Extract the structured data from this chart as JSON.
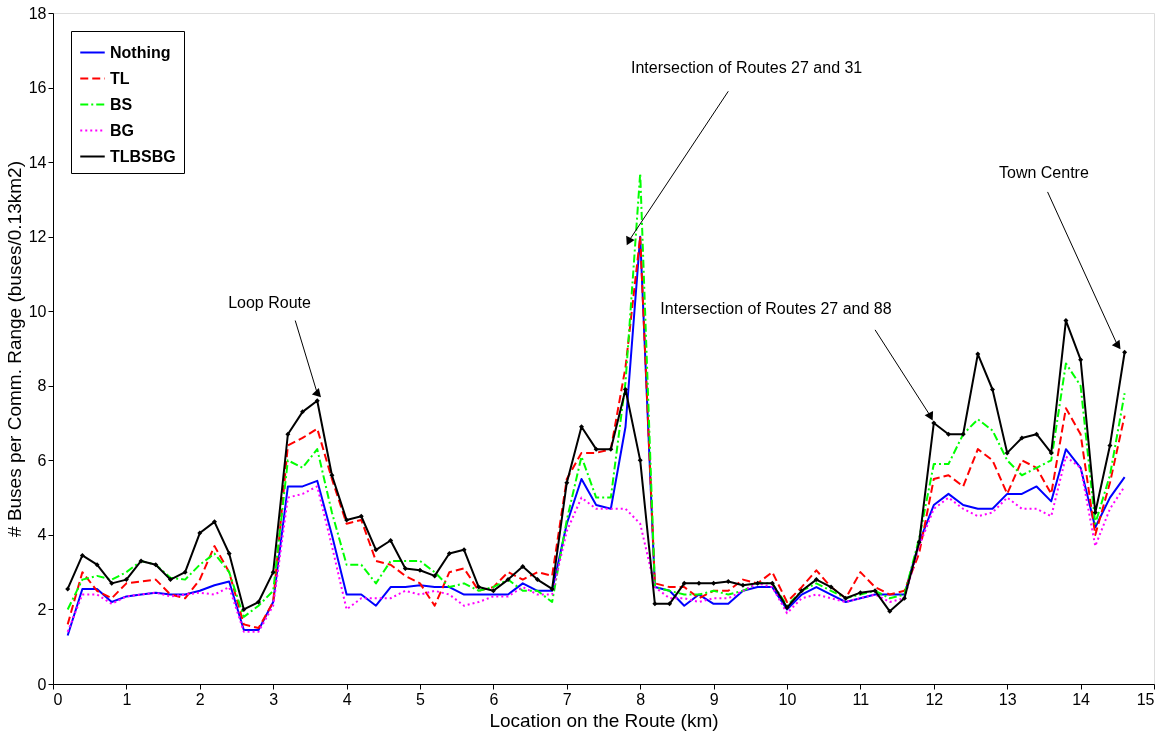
{
  "chart_data": {
    "type": "line",
    "xlabel": "Location on the Route (km)",
    "ylabel": "# Buses per Comm. Range (buses/0.13km2)",
    "x": [
      0.2,
      0.4,
      0.6,
      0.8,
      1.0,
      1.2,
      1.4,
      1.6,
      1.8,
      2.0,
      2.2,
      2.4,
      2.6,
      2.8,
      3.0,
      3.2,
      3.4,
      3.6,
      3.8,
      4.0,
      4.2,
      4.4,
      4.6,
      4.8,
      5.0,
      5.2,
      5.4,
      5.6,
      5.8,
      6.0,
      6.2,
      6.4,
      6.6,
      6.8,
      7.0,
      7.2,
      7.4,
      7.6,
      7.8,
      8.0,
      8.2,
      8.4,
      8.6,
      8.8,
      9.0,
      9.2,
      9.4,
      9.6,
      9.8,
      10.0,
      10.2,
      10.4,
      10.6,
      10.8,
      11.0,
      11.2,
      11.4,
      11.6,
      11.8,
      12.0,
      12.2,
      12.4,
      12.6,
      12.8,
      13.0,
      13.2,
      13.4,
      13.6,
      13.8,
      14.0,
      14.2,
      14.4,
      14.6
    ],
    "series": [
      {
        "name": "Nothing",
        "color": "#0000ff",
        "line_style": "solid",
        "values": [
          1.3,
          2.55,
          2.55,
          2.2,
          2.35,
          2.4,
          2.45,
          2.4,
          2.4,
          2.5,
          2.65,
          2.75,
          1.45,
          1.45,
          2.2,
          5.3,
          5.3,
          5.45,
          4.0,
          2.4,
          2.4,
          2.1,
          2.6,
          2.6,
          2.65,
          2.6,
          2.6,
          2.4,
          2.4,
          2.4,
          2.4,
          2.7,
          2.5,
          2.5,
          4.3,
          5.5,
          4.8,
          4.7,
          6.9,
          12.0,
          2.6,
          2.5,
          2.1,
          2.4,
          2.15,
          2.15,
          2.5,
          2.6,
          2.6,
          2.0,
          2.4,
          2.6,
          2.4,
          2.2,
          2.3,
          2.4,
          2.4,
          2.4,
          3.8,
          4.8,
          5.1,
          4.8,
          4.7,
          4.7,
          5.1,
          5.1,
          5.3,
          4.9,
          6.3,
          5.8,
          4.2,
          5.0,
          5.55
        ]
      },
      {
        "name": "TL",
        "color": "#ff0000",
        "line_style": "dashed",
        "values": [
          1.6,
          3.0,
          2.5,
          2.3,
          2.7,
          2.75,
          2.8,
          2.4,
          2.3,
          2.8,
          3.7,
          3.0,
          1.6,
          1.5,
          2.2,
          6.4,
          6.6,
          6.85,
          5.5,
          4.3,
          4.4,
          3.3,
          3.2,
          2.9,
          2.7,
          2.1,
          3.0,
          3.1,
          2.5,
          2.6,
          3.0,
          2.8,
          3.0,
          2.9,
          5.5,
          6.2,
          6.2,
          6.3,
          8.5,
          12.0,
          2.7,
          2.6,
          2.6,
          2.3,
          2.5,
          2.5,
          2.8,
          2.7,
          3.0,
          2.2,
          2.6,
          3.05,
          2.6,
          2.3,
          3.0,
          2.6,
          2.4,
          2.5,
          3.5,
          5.5,
          5.6,
          5.3,
          6.3,
          6.0,
          5.1,
          6.0,
          5.8,
          5.1,
          7.4,
          6.7,
          4.0,
          5.4,
          7.2
        ]
      },
      {
        "name": "BS",
        "color": "#00ff00",
        "line_style": "dashdot",
        "values": [
          2.0,
          2.8,
          2.9,
          2.8,
          3.0,
          3.3,
          3.2,
          2.85,
          2.8,
          3.2,
          3.5,
          3.0,
          1.8,
          2.1,
          2.5,
          6.0,
          5.8,
          6.3,
          4.6,
          3.2,
          3.2,
          2.7,
          3.3,
          3.3,
          3.3,
          3.0,
          2.6,
          2.7,
          2.5,
          2.6,
          2.8,
          2.5,
          2.5,
          2.2,
          4.4,
          6.1,
          5.0,
          5.0,
          8.1,
          13.7,
          2.6,
          2.5,
          2.4,
          2.4,
          2.5,
          2.4,
          2.5,
          2.7,
          2.7,
          2.1,
          2.5,
          2.7,
          2.5,
          2.3,
          2.4,
          2.5,
          2.3,
          2.4,
          3.9,
          5.9,
          5.9,
          6.7,
          7.1,
          6.8,
          6.0,
          5.6,
          5.8,
          6.0,
          8.6,
          8.0,
          4.3,
          5.6,
          7.8
        ]
      },
      {
        "name": "BG",
        "color": "#ff00ff",
        "line_style": "dotted",
        "values": [
          1.4,
          2.4,
          2.4,
          2.15,
          2.35,
          2.4,
          2.45,
          2.35,
          2.4,
          2.45,
          2.4,
          2.6,
          1.4,
          1.4,
          2.1,
          5.0,
          5.1,
          5.3,
          3.7,
          2.0,
          2.3,
          2.3,
          2.3,
          2.5,
          2.4,
          2.5,
          2.4,
          2.1,
          2.2,
          2.35,
          2.35,
          2.6,
          2.4,
          2.4,
          4.1,
          5.0,
          4.7,
          4.7,
          4.7,
          4.3,
          2.6,
          2.3,
          2.3,
          2.2,
          2.3,
          2.3,
          2.5,
          2.7,
          2.6,
          1.9,
          2.3,
          2.4,
          2.3,
          2.2,
          2.3,
          2.4,
          2.2,
          2.3,
          3.7,
          4.7,
          5.0,
          4.7,
          4.5,
          4.6,
          5.0,
          4.7,
          4.7,
          4.5,
          6.1,
          5.8,
          3.7,
          4.7,
          5.3
        ]
      },
      {
        "name": "TLBSBG",
        "color": "#000000",
        "line_style": "solid",
        "marker": "diamond",
        "values": [
          2.55,
          3.45,
          3.2,
          2.7,
          2.8,
          3.3,
          3.2,
          2.8,
          3.0,
          4.05,
          4.35,
          3.5,
          2.0,
          2.2,
          3.0,
          6.7,
          7.3,
          7.6,
          5.6,
          4.4,
          4.5,
          3.6,
          3.85,
          3.1,
          3.05,
          2.9,
          3.5,
          3.6,
          2.6,
          2.5,
          2.8,
          3.15,
          2.8,
          2.55,
          5.4,
          6.9,
          6.3,
          6.3,
          7.9,
          6.0,
          2.15,
          2.15,
          2.7,
          2.7,
          2.7,
          2.75,
          2.65,
          2.7,
          2.7,
          2.05,
          2.5,
          2.8,
          2.6,
          2.3,
          2.45,
          2.5,
          1.95,
          2.3,
          3.8,
          7.0,
          6.7,
          6.7,
          8.85,
          7.9,
          6.2,
          6.6,
          6.7,
          6.2,
          9.75,
          8.7,
          4.6,
          6.4,
          8.9
        ]
      }
    ],
    "annotations": [
      {
        "text": "Loop Route",
        "x": 3.6,
        "y": 7.8
      },
      {
        "text": "Intersection of Routes 27 and 31",
        "x": 7.85,
        "y": 11.9
      },
      {
        "text": "Intersection of Routes 27 and 88",
        "x": 11.95,
        "y": 7.2
      },
      {
        "text": "Town Centre",
        "x": 14.5,
        "y": 9.1
      }
    ],
    "xlim": [
      0,
      15
    ],
    "xticks": [
      0,
      1,
      2,
      3,
      4,
      5,
      6,
      7,
      8,
      9,
      10,
      11,
      12,
      13,
      14,
      15
    ],
    "ylim": [
      0,
      18
    ],
    "yticks": [
      0,
      2,
      4,
      6,
      8,
      10,
      12,
      14,
      16,
      18
    ],
    "grid": false,
    "legend": "top left"
  }
}
